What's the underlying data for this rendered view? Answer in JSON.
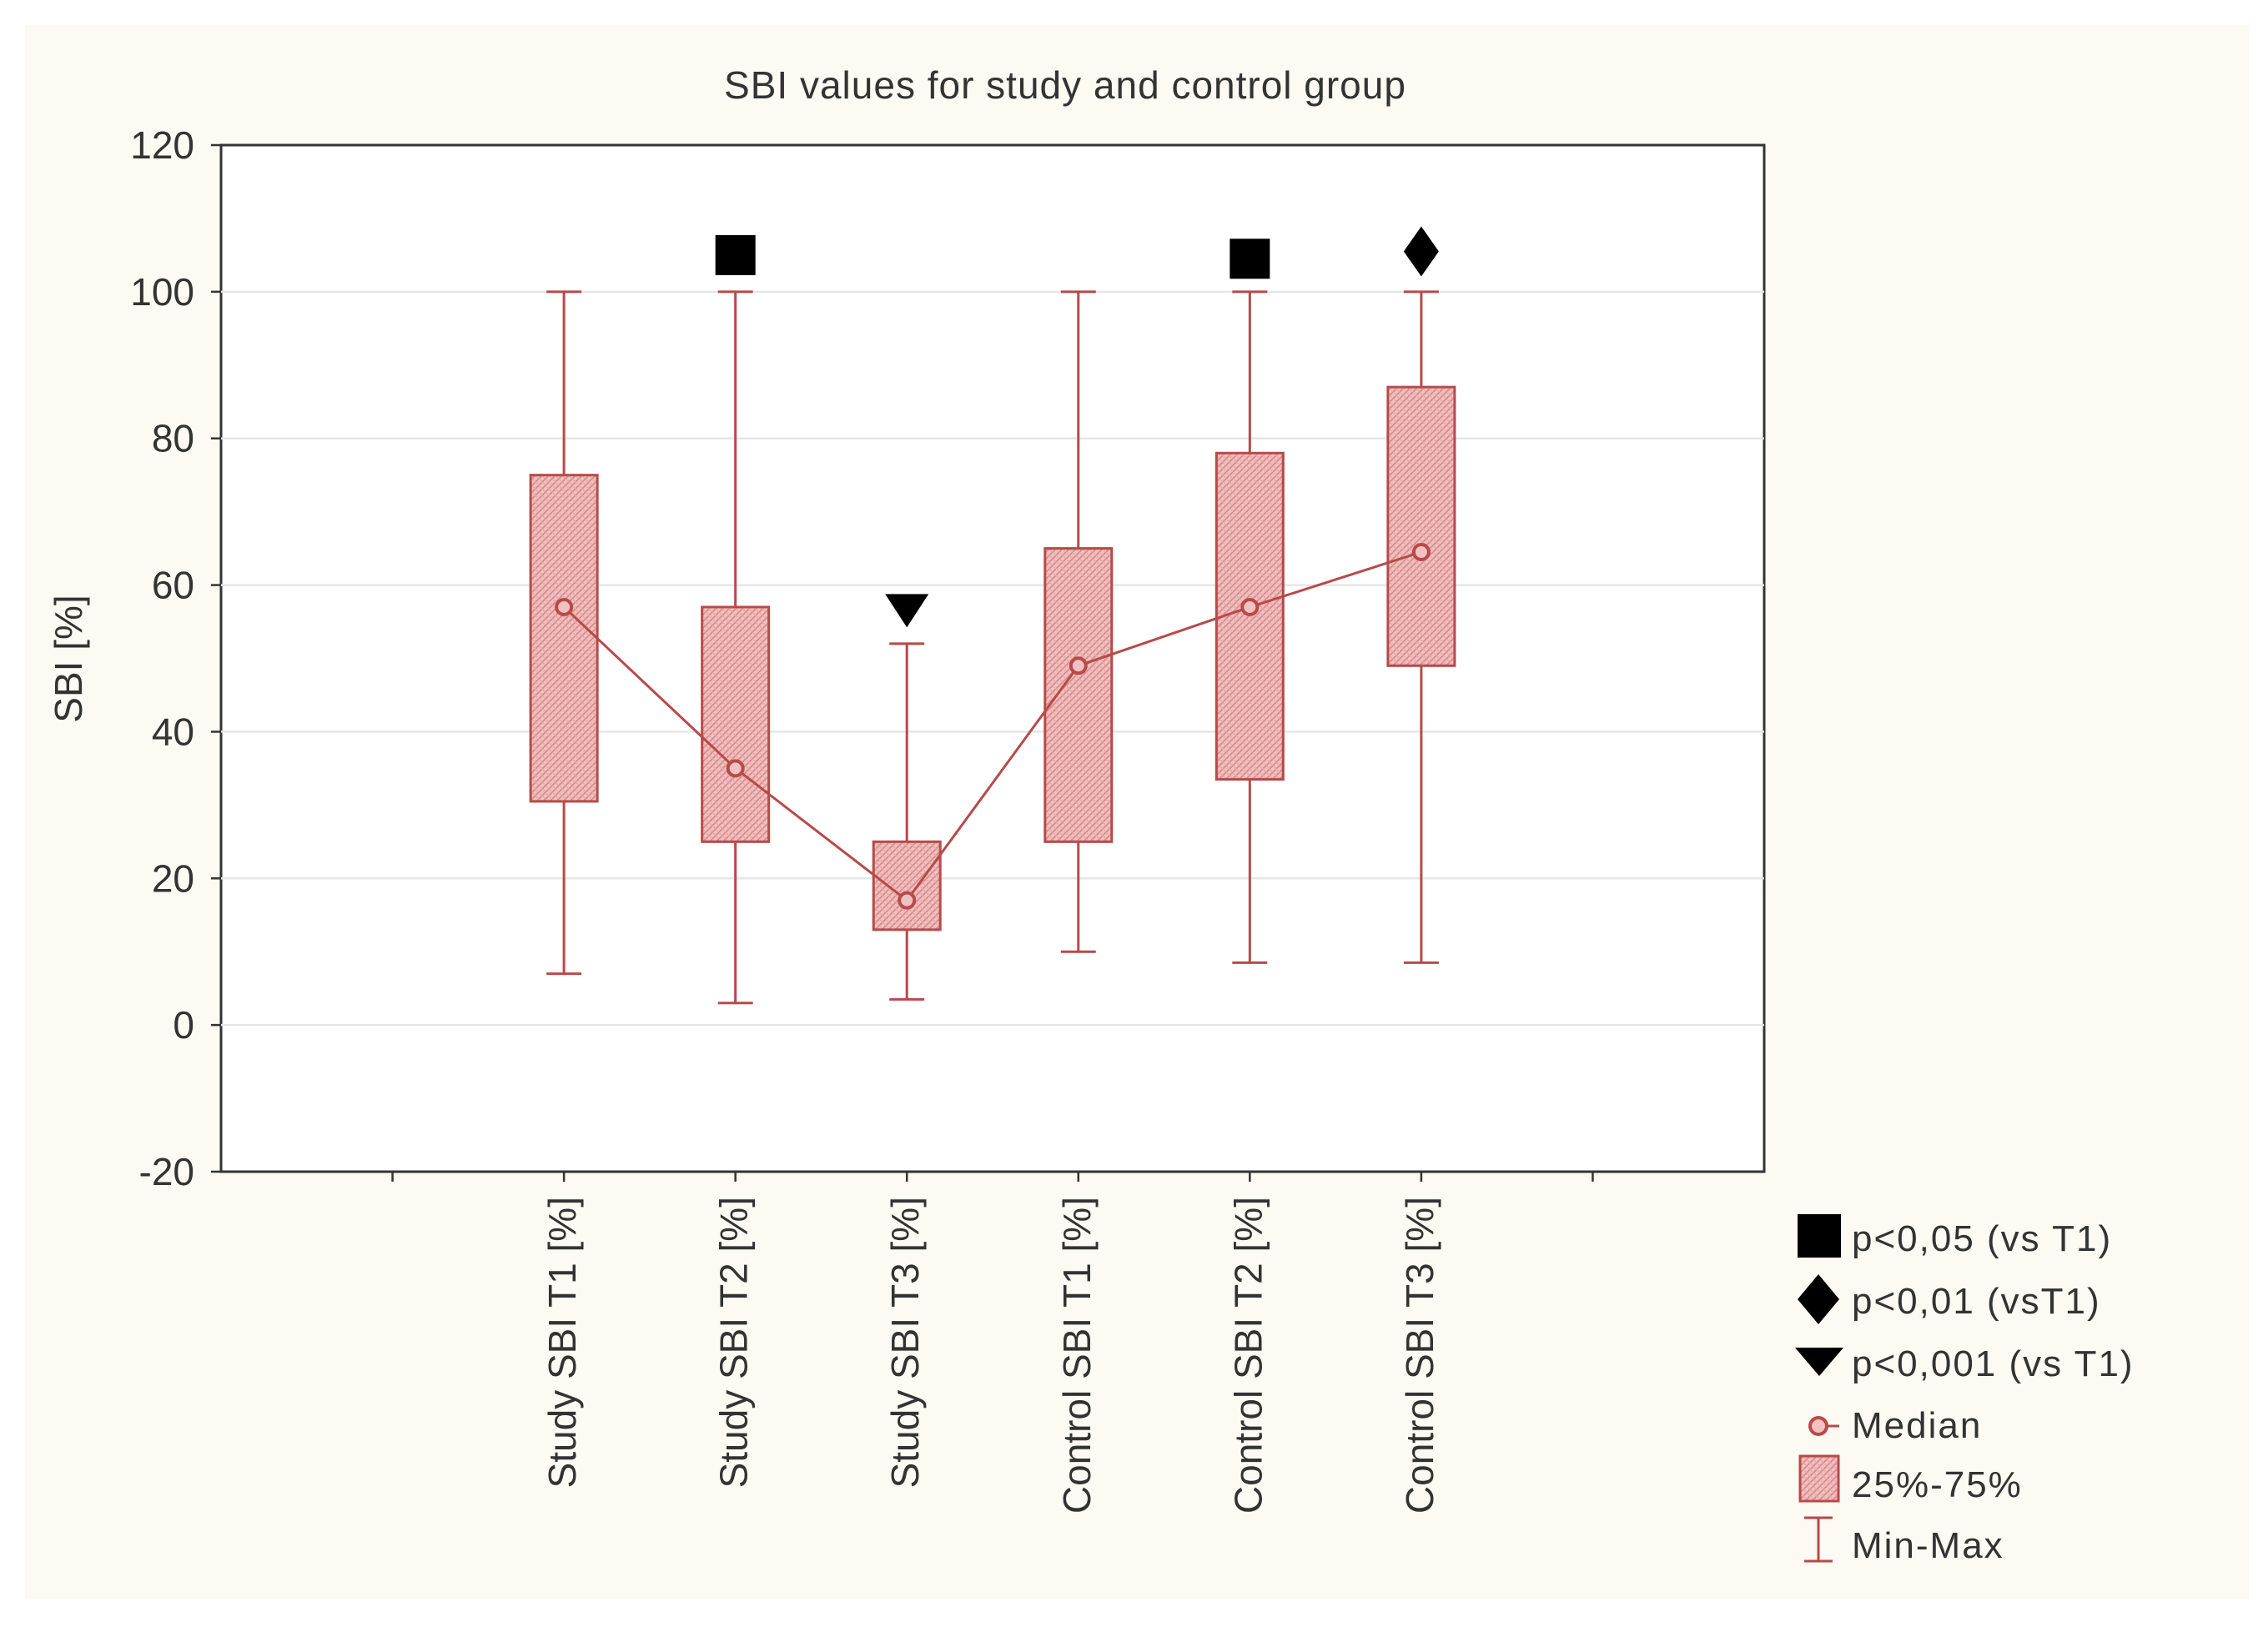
{
  "chart_data": {
    "type": "boxplot",
    "title": "SBI values for study and control group",
    "ylabel": "SBI [%]",
    "xlabel": "",
    "ylim": [
      -20,
      120
    ],
    "yticks": [
      -20,
      0,
      20,
      40,
      60,
      80,
      100,
      120
    ],
    "grid": true,
    "categories": [
      "Study SBI T1 [%]",
      "Study SBI T2 [%]",
      "Study SBI T3 [%]",
      "Control SBI T1 [%]",
      "Control SBI T2 [%]",
      "Control SBI T3 [%]"
    ],
    "series": [
      {
        "name": "Min",
        "values": [
          7,
          3,
          3.5,
          10,
          8.5,
          8.5
        ]
      },
      {
        "name": "Q1",
        "values": [
          30.5,
          25,
          13,
          25,
          33.5,
          49
        ]
      },
      {
        "name": "Median",
        "values": [
          57,
          35,
          17,
          49,
          57,
          64.5
        ]
      },
      {
        "name": "Q3",
        "values": [
          75,
          57,
          25,
          65,
          78,
          87
        ]
      },
      {
        "name": "Max",
        "values": [
          100,
          100,
          52,
          100,
          100,
          100
        ]
      }
    ],
    "significance_markers": [
      {
        "category": "Study SBI T2 [%]",
        "symbol": "square",
        "y": 105
      },
      {
        "category": "Study SBI T3 [%]",
        "symbol": "triangle-down",
        "y": 56.5
      },
      {
        "category": "Control SBI T2 [%]",
        "symbol": "square",
        "y": 104.5
      },
      {
        "category": "Control SBI T3 [%]",
        "symbol": "diamond",
        "y": 105.5
      }
    ],
    "legend": [
      {
        "symbol": "square",
        "label": "p<0,05 (vs T1)"
      },
      {
        "symbol": "diamond",
        "label": "p<0,01 (vsT1)"
      },
      {
        "symbol": "triangle-down",
        "label": "p<0,001 (vs T1)"
      },
      {
        "symbol": "median",
        "label": "Median"
      },
      {
        "symbol": "box",
        "label": "25%-75%"
      },
      {
        "symbol": "whisker",
        "label": "Min-Max"
      }
    ],
    "legend_position": "bottom-right",
    "colors": {
      "box_fill": "#f0b9b9",
      "line": "#b84a4a",
      "marker": "#000000",
      "frame": "#333333",
      "grid": "#e6e6e6"
    }
  }
}
